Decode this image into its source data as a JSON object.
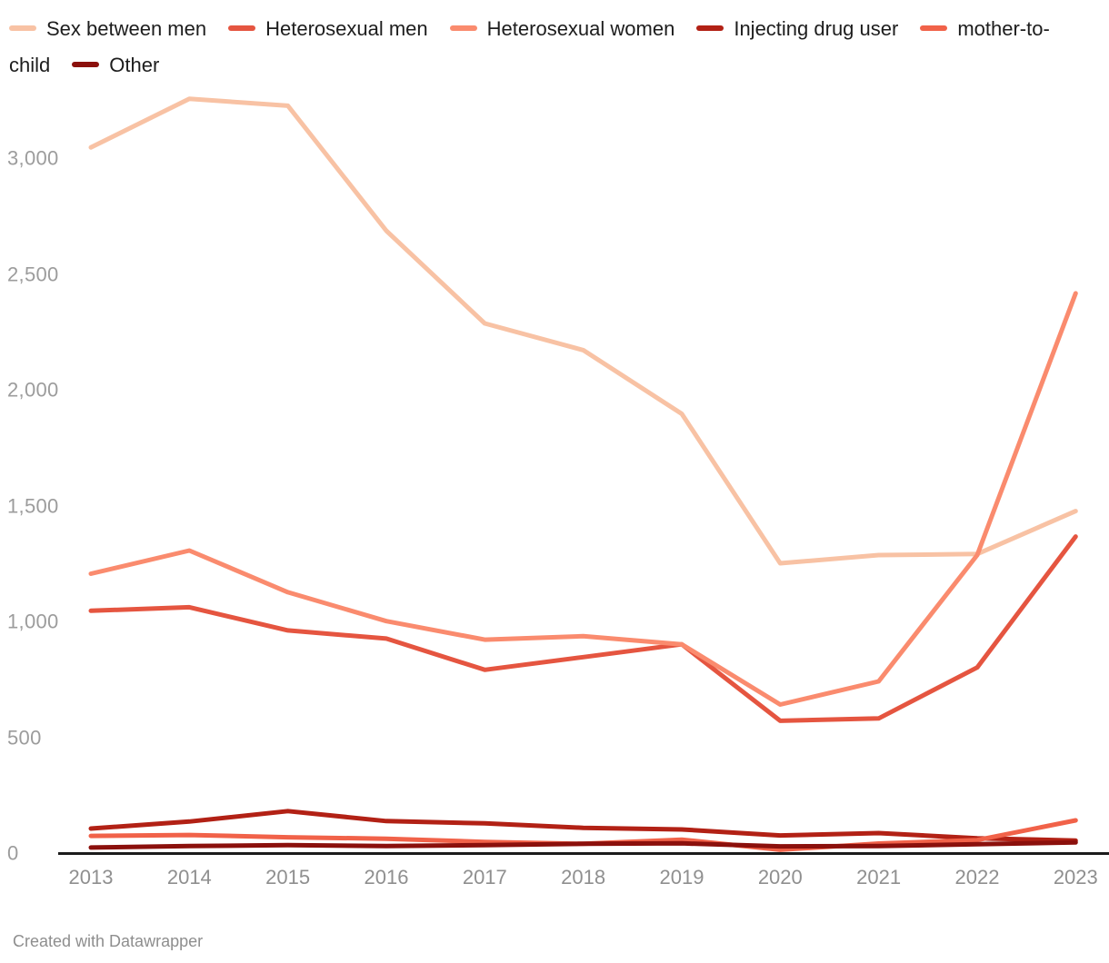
{
  "legend": {
    "items": [
      {
        "label": "Sex between men",
        "color": "#f8c2a4"
      },
      {
        "label": "Heterosexual men",
        "color": "#e55540"
      },
      {
        "label": "Heterosexual women",
        "color": "#fa8b6e"
      },
      {
        "label": "Injecting drug user",
        "color": "#b22115"
      },
      {
        "label": "mother-to-child",
        "color": "#f16249"
      },
      {
        "label": "Other",
        "color": "#8b100c"
      }
    ]
  },
  "chart_data": {
    "type": "line",
    "x": [
      2013,
      2014,
      2015,
      2016,
      2017,
      2018,
      2019,
      2020,
      2021,
      2022,
      2023
    ],
    "series": [
      {
        "name": "Sex between men",
        "color": "#f8c2a4",
        "values": [
          3050,
          3260,
          3230,
          2690,
          2290,
          2175,
          1900,
          1255,
          1290,
          1295,
          1480
        ]
      },
      {
        "name": "Heterosexual men",
        "color": "#e55540",
        "values": [
          1050,
          1065,
          965,
          930,
          795,
          850,
          905,
          575,
          585,
          805,
          1370
        ]
      },
      {
        "name": "Heterosexual women",
        "color": "#fa8b6e",
        "values": [
          1210,
          1310,
          1130,
          1005,
          925,
          940,
          905,
          645,
          745,
          1290,
          2420
        ]
      },
      {
        "name": "Injecting drug user",
        "color": "#b22115",
        "values": [
          110,
          140,
          185,
          142,
          132,
          113,
          106,
          80,
          90,
          68,
          58
        ]
      },
      {
        "name": "mother-to-child",
        "color": "#f16249",
        "values": [
          78,
          82,
          72,
          66,
          52,
          44,
          62,
          18,
          45,
          60,
          145
        ]
      },
      {
        "name": "Other",
        "color": "#8b100c",
        "values": [
          28,
          34,
          38,
          34,
          38,
          44,
          46,
          33,
          34,
          42,
          50
        ]
      }
    ],
    "title": "",
    "xlabel": "",
    "ylabel": "",
    "ylim": [
      0,
      3300
    ],
    "grid": false,
    "legend_position": "top",
    "y_ticks": [
      {
        "value": 0,
        "label": "0"
      },
      {
        "value": 500,
        "label": "500"
      },
      {
        "value": 1000,
        "label": "1,000"
      },
      {
        "value": 1500,
        "label": "1,500"
      },
      {
        "value": 2000,
        "label": "2,000"
      },
      {
        "value": 2500,
        "label": "2,500"
      },
      {
        "value": 3000,
        "label": "3,000"
      }
    ]
  },
  "footer": {
    "credit": "Created with Datawrapper"
  }
}
